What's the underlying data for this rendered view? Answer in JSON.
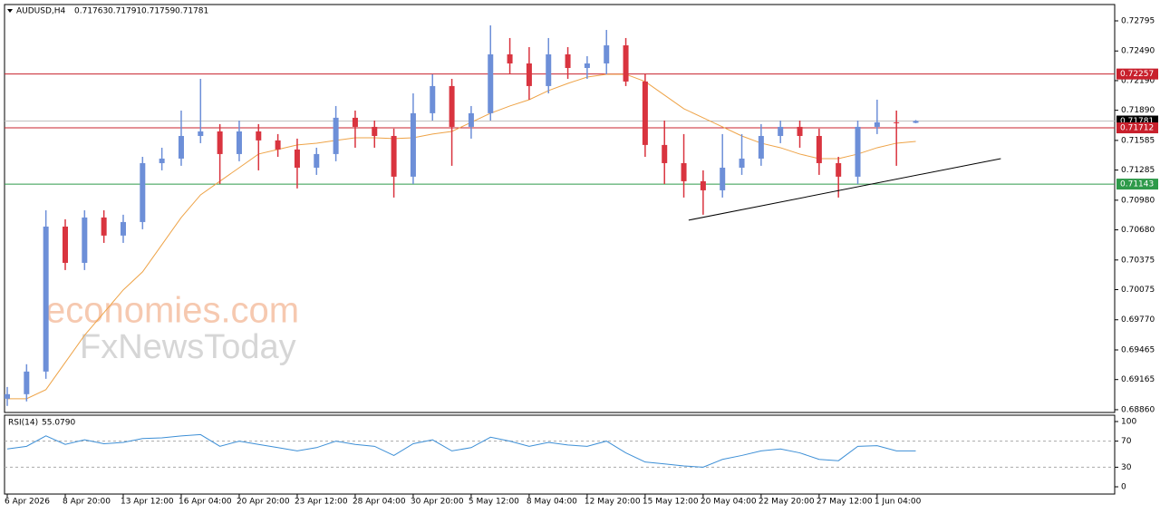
{
  "chart_data": {
    "type": "candlestick",
    "symbol": "AUDUSD,H4",
    "watermark": [
      "economies.com",
      "FxNewsToday"
    ],
    "categories": [
      "6 Apr 2026",
      null,
      null,
      "8 Apr 20:00",
      null,
      null,
      "13 Apr 12:00",
      null,
      null,
      "16 Apr 04:00",
      null,
      null,
      "20 Apr 20:00",
      null,
      null,
      "23 Apr 12:00",
      null,
      null,
      "28 Apr 04:00",
      null,
      null,
      "30 Apr 20:00",
      null,
      null,
      "5 May 12:00",
      null,
      null,
      "8 May 04:00",
      null,
      null,
      "12 May 20:00",
      null,
      null,
      "15 May 12:00",
      null,
      null,
      "20 May 04:00",
      null,
      null,
      "22 May 20:00",
      null,
      null,
      "27 May 12:00",
      null,
      null,
      "1 Jun 04:00",
      null,
      null
    ],
    "open": [
      0.68971,
      0.69017,
      0.69246,
      0.70713,
      0.70346,
      0.70805,
      0.70622,
      0.70759,
      0.71355,
      0.71401,
      0.7163,
      0.71676,
      0.71447,
      0.71676,
      0.71585,
      0.71493,
      0.71309,
      0.71447,
      0.71814,
      0.71722,
      0.7163,
      0.71218,
      0.7186,
      0.72135,
      0.71722,
      0.7186,
      0.72456,
      0.72364,
      0.72135,
      0.72456,
      0.72318,
      0.72364,
      0.72547,
      0.72181,
      0.71539,
      0.71355,
      0.71172,
      0.7108,
      0.71309,
      0.71401,
      0.7163,
      0.71722,
      0.7163,
      0.71355,
      0.71218,
      0.71722,
      0.71768,
      0.71763
    ],
    "high": [
      0.6909,
      0.6932,
      0.70878,
      0.70787,
      0.70878,
      0.70878,
      0.70833,
      0.71419,
      0.71511,
      0.71887,
      0.72208,
      0.7175,
      0.71786,
      0.7175,
      0.71649,
      0.71603,
      0.71511,
      0.71933,
      0.71887,
      0.71786,
      0.71704,
      0.72061,
      0.72254,
      0.72208,
      0.71933,
      0.72749,
      0.72621,
      0.72529,
      0.72621,
      0.72529,
      0.72437,
      0.72703,
      0.72621,
      0.72254,
      0.71786,
      0.71649,
      0.71282,
      0.71649,
      0.71649,
      0.7175,
      0.71786,
      0.71786,
      0.71704,
      0.71419,
      0.71786,
      0.71997,
      0.71887,
      0.71791
    ],
    "low": [
      0.68898,
      0.68944,
      0.69173,
      0.70273,
      0.70273,
      0.70548,
      0.70548,
      0.70686,
      0.71282,
      0.71328,
      0.71557,
      0.71144,
      0.71374,
      0.71282,
      0.71419,
      0.71099,
      0.71236,
      0.71374,
      0.71511,
      0.71511,
      0.71007,
      0.71144,
      0.71786,
      0.71328,
      0.71603,
      0.71786,
      0.72254,
      0.71997,
      0.72061,
      0.72208,
      0.72208,
      0.72254,
      0.72135,
      0.71419,
      0.71144,
      0.71007,
      0.70833,
      0.71007,
      0.71236,
      0.71328,
      0.71557,
      0.71511,
      0.71236,
      0.71007,
      0.71144,
      0.71649,
      0.71328,
      0.71759
    ],
    "close": [
      0.69017,
      0.69246,
      0.70713,
      0.70346,
      0.70805,
      0.70622,
      0.70759,
      0.71355,
      0.71401,
      0.7163,
      0.71676,
      0.71447,
      0.71676,
      0.71585,
      0.71493,
      0.71309,
      0.71447,
      0.71814,
      0.71722,
      0.7163,
      0.71218,
      0.7186,
      0.72135,
      0.71722,
      0.7186,
      0.72456,
      0.72364,
      0.72135,
      0.72456,
      0.72318,
      0.72364,
      0.72547,
      0.72181,
      0.71539,
      0.71355,
      0.71172,
      0.7108,
      0.71309,
      0.71401,
      0.7163,
      0.71722,
      0.7163,
      0.71355,
      0.71218,
      0.71722,
      0.71768,
      0.71763,
      0.71781
    ],
    "up_color": "#6d8fd8",
    "down_color": "#d9343f",
    "moving_average": {
      "color": "#eea347",
      "values": [
        0.68971,
        0.68971,
        0.69063,
        0.69338,
        0.69613,
        0.69842,
        0.70072,
        0.70255,
        0.7053,
        0.70805,
        0.71034,
        0.71172,
        0.71309,
        0.71447,
        0.71493,
        0.71539,
        0.71557,
        0.71585,
        0.71612,
        0.71612,
        0.71603,
        0.71612,
        0.71649,
        0.71676,
        0.71768,
        0.7186,
        0.71933,
        0.71997,
        0.72089,
        0.72162,
        0.72226,
        0.72254,
        0.72254,
        0.72181,
        0.72043,
        0.71906,
        0.71814,
        0.71722,
        0.7163,
        0.71557,
        0.71511,
        0.71447,
        0.71401,
        0.71401,
        0.71447,
        0.71511,
        0.71557,
        0.71575
      ]
    },
    "levels": [
      {
        "value": 0.72257,
        "color": "#c8202c"
      },
      {
        "value": 0.71781,
        "color": "#000000"
      },
      {
        "value": 0.71712,
        "color": "#c8202c"
      },
      {
        "value": 0.71143,
        "color": "#2e9a4a"
      }
    ],
    "trendline": {
      "x": [
        35.25,
        51.4
      ],
      "y": [
        0.70778,
        0.71401
      ]
    },
    "ylim": [
      0.68832,
      0.7296
    ],
    "yticks": [
      0.72795,
      {
        "value": 0.7249,
        "label": "0.72490"
      },
      {
        "value": 0.7219,
        "label": "0.72190"
      },
      {
        "value": 0.7189,
        "label": "0.71890"
      },
      0.71585,
      0.71285,
      {
        "value": 0.7098,
        "label": "0.70980"
      },
      {
        "value": 0.7068,
        "label": "0.70680"
      },
      0.70375,
      0.70075,
      {
        "value": 0.6977,
        "label": "0.69770"
      },
      0.69465,
      0.69165,
      {
        "value": 0.6886,
        "label": "0.68860"
      }
    ],
    "rsi": {
      "name": "RSI(14)",
      "value_label": "55.0790",
      "color": "#3d8fd6",
      "values": [
        58,
        62,
        78,
        65,
        72,
        66,
        68,
        74,
        75,
        78,
        80,
        62,
        70,
        65,
        60,
        55,
        60,
        70,
        65,
        62,
        48,
        66,
        72,
        55,
        60,
        76,
        70,
        62,
        68,
        64,
        62,
        70,
        52,
        38,
        35,
        32,
        30,
        42,
        48,
        55,
        58,
        52,
        42,
        40,
        62,
        63,
        55,
        55.079
      ],
      "ylim": [
        0,
        100
      ],
      "yticks": [
        0,
        30,
        70,
        100
      ],
      "levels": [
        30,
        70
      ]
    }
  }
}
